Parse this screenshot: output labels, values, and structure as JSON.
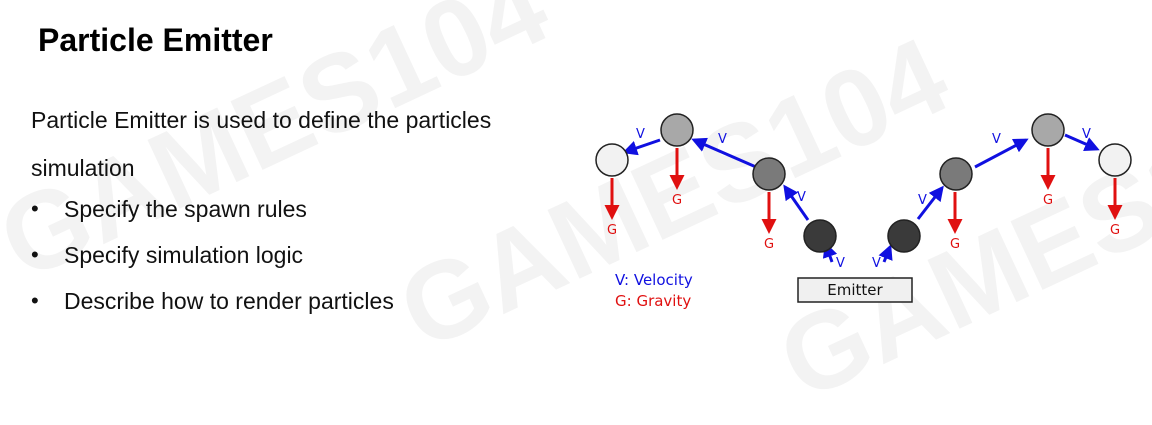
{
  "slide": {
    "title": "Particle Emitter",
    "intro": "Particle Emitter is used to define the particles simulation",
    "bullets": [
      "Specify the spawn rules",
      "Specify simulation logic",
      "Describe how to render particles"
    ]
  },
  "diagram": {
    "emitter_label": "Emitter",
    "velocity_label": "V",
    "gravity_label": "G",
    "legend": {
      "velocity": "V: Velocity",
      "gravity": "G: Gravity"
    },
    "colors": {
      "velocity": "#1010e0",
      "gravity": "#e01010"
    }
  },
  "watermark": "GAMES104"
}
